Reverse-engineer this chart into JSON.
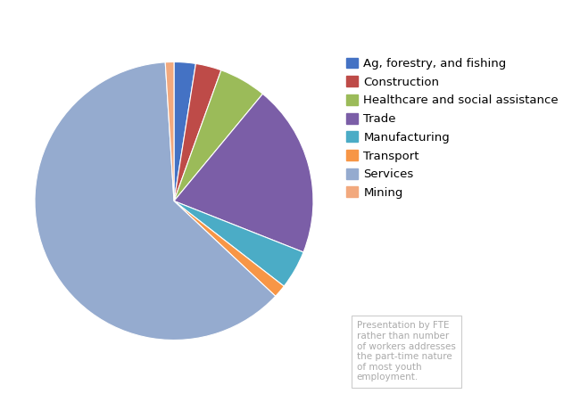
{
  "labels": [
    "Ag, forestry, and fishing",
    "Construction",
    "Healthcare and social assistance",
    "Trade",
    "Manufacturing",
    "Transport",
    "Services",
    "Mining"
  ],
  "values": [
    2.5,
    3.0,
    5.5,
    20.0,
    4.5,
    1.5,
    62.0,
    1.0
  ],
  "colors": [
    "#4472C4",
    "#BE4B48",
    "#9BBB59",
    "#7B5EA7",
    "#4BACC6",
    "#F79646",
    "#95ABCF",
    "#F2A97E"
  ],
  "annotation": "Presentation by FTE\nrather than number\nof workers addresses\nthe part-time nature\nof most youth\nemployment.",
  "startangle": 90,
  "background_color": "#FFFFFF",
  "legend_fontsize": 9.5
}
